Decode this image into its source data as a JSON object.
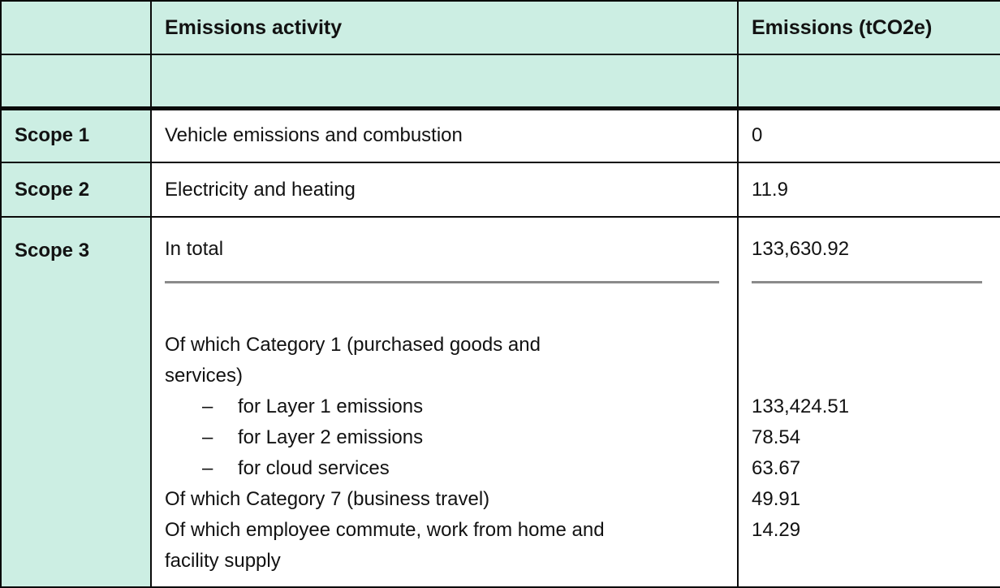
{
  "table": {
    "columns": {
      "scope": "",
      "activity": "Emissions activity",
      "emissions": "Emissions (tCO2e)"
    },
    "rows": [
      {
        "scope": "Scope 1",
        "activity": "Vehicle emissions and combustion",
        "value": "0"
      },
      {
        "scope": "Scope 2",
        "activity": "Electricity and heating",
        "value": "11.9"
      }
    ],
    "scope3": {
      "scope": "Scope 3",
      "total_label": "In total",
      "total_value": "133,630.92",
      "breakdown": [
        {
          "style": "plain",
          "label": "Of which Category 1 (purchased goods and\nservices)"
        },
        {
          "style": "dash",
          "label": "for Layer 1 emissions"
        },
        {
          "style": "dash",
          "label": "for Layer 2 emissions"
        },
        {
          "style": "dash",
          "label": "for cloud services"
        },
        {
          "style": "plain",
          "label": "Of which Category 7 (business travel)"
        },
        {
          "style": "plain",
          "label": "Of which employee commute, work from home and\nfacility supply"
        }
      ],
      "breakdown_values": [
        "133,424.51",
        "78.54",
        "63.67",
        "49.91",
        "14.29"
      ]
    }
  },
  "colors": {
    "header_bg": "#cceee3",
    "border": "#0a0a0a",
    "divider_line": "#8a8a8a",
    "text": "#121212"
  }
}
